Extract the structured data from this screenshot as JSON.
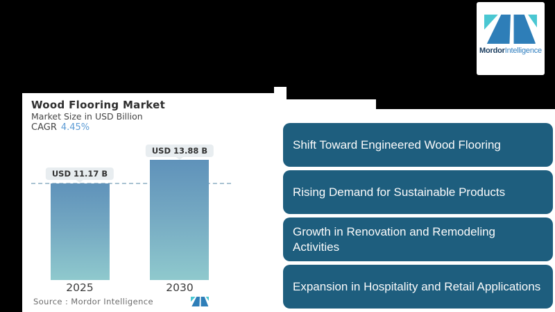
{
  "brand": {
    "primary": "Mordor",
    "secondary": "Intelligence"
  },
  "chart_card": {
    "title": "Wood Flooring Market",
    "subtitle": "Market Size in USD Billion",
    "cagr_label": "CAGR",
    "cagr_value": "4.45%",
    "source": "Source :  Mordor Intelligence"
  },
  "chart_data": {
    "type": "bar",
    "title": "Wood Flooring Market",
    "subtitle": "Market Size in USD Billion",
    "categories": [
      "2025",
      "2030"
    ],
    "values": [
      11.17,
      13.88
    ],
    "value_labels": [
      "USD 11.17 B",
      "USD 13.88 B"
    ],
    "unit": "USD Billion",
    "cagr_percent": 4.45,
    "ylim": [
      0,
      13.88
    ],
    "grid": "off",
    "legend": "none",
    "reference_line": {
      "style": "dashed",
      "at_value": 11.17
    },
    "bar_gradient_top": "#5f92ba",
    "bar_gradient_bottom": "#8fc9cd"
  },
  "highlights": [
    "Shift Toward Engineered Wood Flooring",
    "Rising Demand for Sustainable Products",
    "Growth in Renovation and Remodeling Activities",
    "Expansion in Hospitality and Retail Applications"
  ],
  "colors": {
    "background": "#000000",
    "card_bg": "#ffffff",
    "highlight_box": "#1e5e7e",
    "highlight_text": "#fbfbfb",
    "pill_bg": "#e8edf0",
    "cagr_value": "#5b9bd5",
    "dashed_line": "#a9c3d2",
    "logo_teal": "#4ac7d2",
    "logo_blue": "#2e7eb8",
    "logo_word_dark": "#16395c",
    "logo_word_light": "#2d7dbf"
  }
}
